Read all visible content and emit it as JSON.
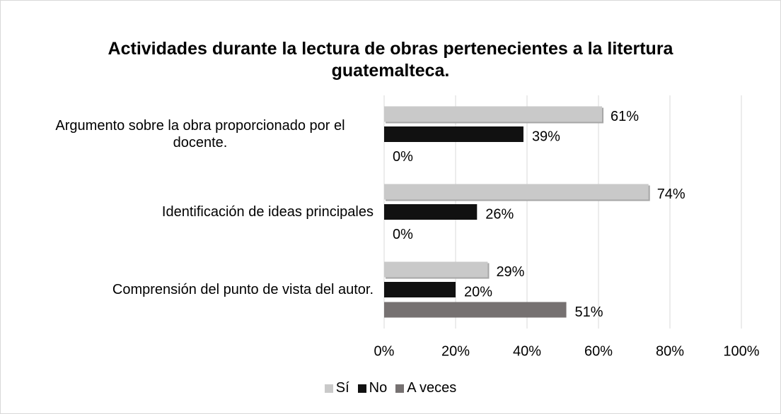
{
  "chart_data": {
    "type": "hbar",
    "title": "Actividades durante la lectura de obras pertenecientes a la litertura guatemalteca.",
    "categories": [
      "Argumento sobre la obra proporcionado por el docente.",
      "Identificación de ideas principales",
      "Comprensión del punto de vista del autor."
    ],
    "series": [
      {
        "name": "Sí",
        "color": "#c9c9c9",
        "values": [
          61,
          74,
          29
        ],
        "value_labels": [
          "61%",
          "74%",
          "29%"
        ]
      },
      {
        "name": "No",
        "color": "#111111",
        "values": [
          39,
          26,
          20
        ],
        "value_labels": [
          "39%",
          "26%",
          "20%"
        ]
      },
      {
        "name": "A veces",
        "color": "#767171",
        "values": [
          0,
          0,
          51
        ],
        "value_labels": [
          "0%",
          "0%",
          "51%"
        ]
      }
    ],
    "xlim": [
      0,
      100
    ],
    "xticks": [
      {
        "value": 0,
        "label": "0%"
      },
      {
        "value": 20,
        "label": "20%"
      },
      {
        "value": 40,
        "label": "40%"
      },
      {
        "value": 60,
        "label": "60%"
      },
      {
        "value": 80,
        "label": "80%"
      },
      {
        "value": 100,
        "label": "100%"
      }
    ],
    "grid": true,
    "legend": "bottom"
  }
}
